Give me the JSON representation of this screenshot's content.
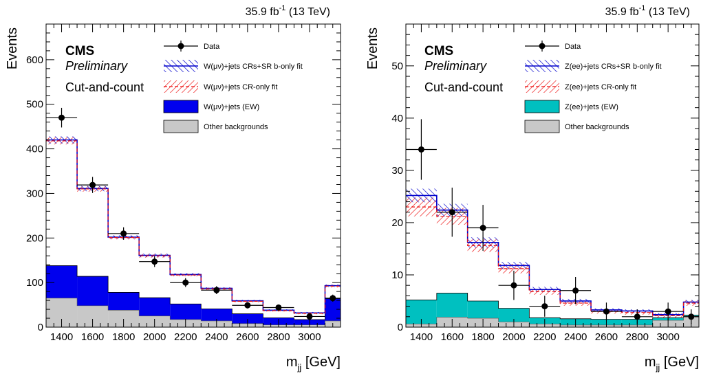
{
  "colors": {
    "w_signal": "#0000ee",
    "z_signal": "#00c0c0",
    "other_backgrounds": "#c8c8c8",
    "bonly_band_hatch": "#0000cc",
    "cronly_band_hatch": "#ee1111",
    "data": "#000000"
  },
  "chart_data": [
    {
      "type": "bar",
      "style": "stacked step histogram with data points and hatched uncertainty bands",
      "lumi_label": "35.9 fb",
      "lumi_exponent": "-1",
      "lumi_energy": " (13 TeV)",
      "experiment": "CMS",
      "status": "Preliminary",
      "selection": "Cut-and-count",
      "xlabel_main": "m",
      "xlabel_sub": "jj",
      "xlabel_unit": " [GeV]",
      "ylabel": "Events",
      "xlim": [
        1300,
        3200
      ],
      "ylim": [
        0,
        680
      ],
      "xticks": [
        1400,
        1600,
        1800,
        2000,
        2200,
        2400,
        2600,
        2800,
        3000
      ],
      "yticks": [
        0,
        100,
        200,
        300,
        400,
        500,
        600
      ],
      "bin_edges": [
        1300,
        1500,
        1700,
        1900,
        2100,
        2300,
        2500,
        2700,
        2900,
        3100,
        3200
      ],
      "other_backgrounds": [
        65,
        48,
        38,
        25,
        17,
        14,
        8,
        5,
        5,
        14
      ],
      "signal_ew": [
        73,
        66,
        40,
        41,
        35,
        27,
        22,
        16,
        12,
        50
      ],
      "bonly_fit": [
        420,
        311,
        202,
        161,
        118,
        87,
        59,
        38,
        32,
        93
      ],
      "bonly_unc": [
        8,
        6,
        4,
        4,
        3,
        2.5,
        2,
        2,
        2,
        3
      ],
      "cronly_fit": [
        418,
        310,
        201,
        160,
        117,
        86,
        58,
        37,
        31,
        92
      ],
      "cronly_unc": [
        8,
        6,
        4,
        4,
        3,
        2.5,
        2,
        2,
        2,
        3
      ],
      "data": [
        {
          "x": 1400,
          "y": 470,
          "xerr": 100,
          "yerr": 22
        },
        {
          "x": 1600,
          "y": 319,
          "xerr": 100,
          "yerr": 18
        },
        {
          "x": 1800,
          "y": 210,
          "xerr": 100,
          "yerr": 14
        },
        {
          "x": 2000,
          "y": 147,
          "xerr": 100,
          "yerr": 12
        },
        {
          "x": 2200,
          "y": 100,
          "xerr": 100,
          "yerr": 10
        },
        {
          "x": 2400,
          "y": 83,
          "xerr": 100,
          "yerr": 9
        },
        {
          "x": 2600,
          "y": 49,
          "xerr": 100,
          "yerr": 7
        },
        {
          "x": 2800,
          "y": 44,
          "xerr": 100,
          "yerr": 6.6
        },
        {
          "x": 3000,
          "y": 24,
          "xerr": 100,
          "yerr": 5
        },
        {
          "x": 3150,
          "y": 65,
          "xerr": 50,
          "yerr": 8
        }
      ],
      "legend": {
        "data": "Data",
        "bonly": "W(μν)+jets CRs+SR b-only fit",
        "cronly": "W(μν)+jets CR-only fit",
        "signal": "W(μν)+jets (EW)",
        "other": "Other backgrounds"
      },
      "signal_color_key": "w_signal"
    },
    {
      "type": "bar",
      "style": "stacked step histogram with data points and hatched uncertainty bands",
      "lumi_label": "35.9 fb",
      "lumi_exponent": "-1",
      "lumi_energy": " (13 TeV)",
      "experiment": "CMS",
      "status": "Preliminary",
      "selection": "Cut-and-count",
      "xlabel_main": "m",
      "xlabel_sub": "jj",
      "xlabel_unit": " [GeV]",
      "ylabel": "Events",
      "xlim": [
        1300,
        3200
      ],
      "ylim": [
        0,
        58
      ],
      "xticks": [
        1400,
        1600,
        1800,
        2000,
        2200,
        2400,
        2600,
        2800,
        3000
      ],
      "yticks": [
        0,
        10,
        20,
        30,
        40,
        50
      ],
      "bin_edges": [
        1300,
        1500,
        1700,
        1900,
        2100,
        2300,
        2500,
        2700,
        2900,
        3100,
        3200
      ],
      "other_backgrounds": [
        0.6,
        1.9,
        1.7,
        1.0,
        0.6,
        0.4,
        0.4,
        0.4,
        1.3,
        2.1
      ],
      "signal_ew": [
        4.6,
        4.6,
        3.3,
        2.6,
        1.2,
        1.2,
        1.1,
        1.1,
        0.5,
        0.2
      ],
      "bonly_fit": [
        25.2,
        22.4,
        16.2,
        11.8,
        7.2,
        5.0,
        3.3,
        3.1,
        2.4,
        4.8
      ],
      "bonly_unc": [
        1.3,
        1.2,
        1.0,
        0.7,
        0.5,
        0.4,
        0.3,
        0.3,
        0.3,
        0.4
      ],
      "cronly_fit": [
        23.0,
        21.2,
        15.6,
        11.2,
        6.8,
        4.6,
        3.0,
        2.8,
        2.2,
        4.6
      ],
      "cronly_unc": [
        1.8,
        1.6,
        1.2,
        0.9,
        0.6,
        0.5,
        0.4,
        0.4,
        0.4,
        0.5
      ],
      "data": [
        {
          "x": 1400,
          "y": 34,
          "xerr": 100,
          "yerr": 5.8
        },
        {
          "x": 1600,
          "y": 22,
          "xerr": 100,
          "yerr": 4.7
        },
        {
          "x": 1800,
          "y": 19,
          "xerr": 100,
          "yerr": 4.4
        },
        {
          "x": 2000,
          "y": 8,
          "xerr": 100,
          "yerr": 2.8
        },
        {
          "x": 2200,
          "y": 4,
          "xerr": 100,
          "yerr": 2.0
        },
        {
          "x": 2400,
          "y": 7,
          "xerr": 100,
          "yerr": 2.6
        },
        {
          "x": 2600,
          "y": 3,
          "xerr": 100,
          "yerr": 1.7
        },
        {
          "x": 2800,
          "y": 2,
          "xerr": 100,
          "yerr": 1.4
        },
        {
          "x": 3000,
          "y": 3,
          "xerr": 100,
          "yerr": 1.7
        },
        {
          "x": 3150,
          "y": 2,
          "xerr": 50,
          "yerr": 1.4
        }
      ],
      "legend": {
        "data": "Data",
        "bonly": "Z(ee)+jets CRs+SR b-only fit",
        "cronly": "Z(ee)+jets CR-only fit",
        "signal": "Z(ee)+jets (EW)",
        "other": "Other backgrounds"
      },
      "signal_color_key": "z_signal"
    }
  ]
}
